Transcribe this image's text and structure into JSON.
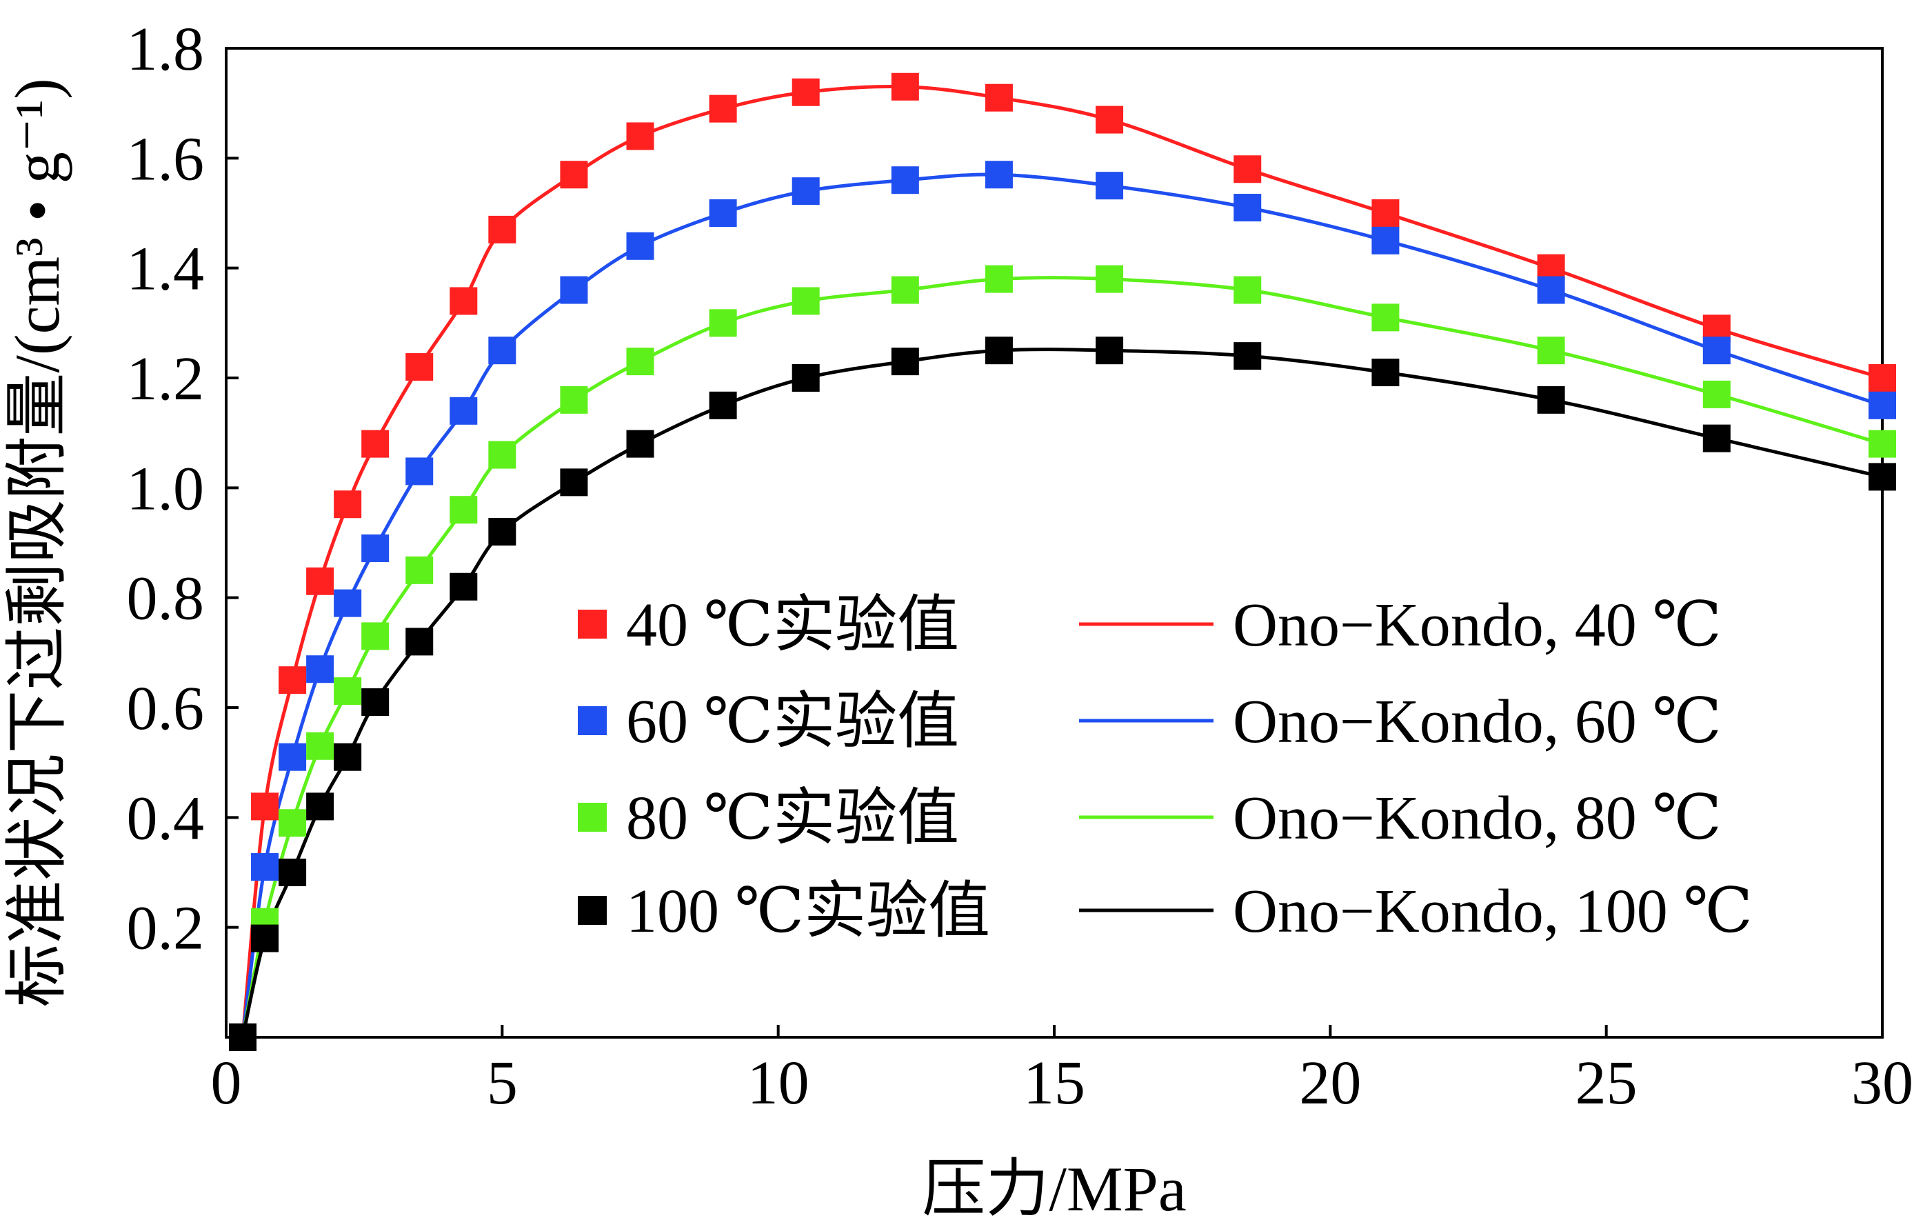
{
  "chart_data": {
    "type": "line",
    "xlabel": "压力/MPa",
    "ylabel": "标准状况下过剩吸附量/(cm³ • g⁻¹)",
    "xlim": [
      0,
      30
    ],
    "ylim": [
      0,
      1.8
    ],
    "xticks": [
      0,
      5,
      10,
      15,
      20,
      25,
      30
    ],
    "yticks": [
      0.2,
      0.4,
      0.6,
      0.8,
      1.0,
      1.2,
      1.4,
      1.6,
      1.8
    ],
    "xtick_labels": [
      "0",
      "5",
      "10",
      "15",
      "20",
      "25",
      "30"
    ],
    "ytick_labels": [
      "0.2",
      "0.4",
      "0.6",
      "0.8",
      "1.0",
      "1.2",
      "1.4",
      "1.6",
      "1.8"
    ],
    "grid": false,
    "legend_position": "center-right",
    "x": [
      0.3,
      0.7,
      1.2,
      1.7,
      2.2,
      2.7,
      3.5,
      4.3,
      5.0,
      6.3,
      7.5,
      9.0,
      10.5,
      12.3,
      14.0,
      16.0,
      18.5,
      21.0,
      24.0,
      27.0,
      30.0
    ],
    "series": [
      {
        "name": "40 ℃实验值",
        "style": "markers",
        "color": "#ff2020",
        "values": [
          0.0,
          0.42,
          0.65,
          0.83,
          0.97,
          1.08,
          1.22,
          1.34,
          1.47,
          1.57,
          1.64,
          1.69,
          1.72,
          1.73,
          1.71,
          1.67,
          1.58,
          1.5,
          1.4,
          1.29,
          1.2
        ]
      },
      {
        "name": "60 ℃实验值",
        "style": "markers",
        "color": "#1f4ff0",
        "values": [
          0.0,
          0.31,
          0.51,
          0.67,
          0.79,
          0.89,
          1.03,
          1.14,
          1.25,
          1.36,
          1.44,
          1.5,
          1.54,
          1.56,
          1.57,
          1.55,
          1.51,
          1.45,
          1.36,
          1.25,
          1.15
        ]
      },
      {
        "name": "80 ℃实验值",
        "style": "markers",
        "color": "#5ef01a",
        "values": [
          0.0,
          0.21,
          0.39,
          0.53,
          0.63,
          0.73,
          0.85,
          0.96,
          1.06,
          1.16,
          1.23,
          1.3,
          1.34,
          1.36,
          1.38,
          1.38,
          1.36,
          1.31,
          1.25,
          1.17,
          1.08
        ]
      },
      {
        "name": "100 ℃实验值",
        "style": "markers",
        "color": "#000000",
        "values": [
          0.0,
          0.18,
          0.3,
          0.42,
          0.51,
          0.61,
          0.72,
          0.82,
          0.92,
          1.01,
          1.08,
          1.15,
          1.2,
          1.23,
          1.25,
          1.25,
          1.24,
          1.21,
          1.16,
          1.09,
          1.02
        ]
      },
      {
        "name": "Ono−Kondo, 40 ℃",
        "style": "line",
        "color": "#ff2020",
        "values": [
          0.0,
          0.42,
          0.65,
          0.83,
          0.97,
          1.08,
          1.22,
          1.34,
          1.47,
          1.57,
          1.64,
          1.69,
          1.72,
          1.73,
          1.71,
          1.67,
          1.58,
          1.5,
          1.4,
          1.29,
          1.2
        ]
      },
      {
        "name": "Ono−Kondo, 60 ℃",
        "style": "line",
        "color": "#1f4ff0",
        "values": [
          0.0,
          0.31,
          0.51,
          0.67,
          0.79,
          0.89,
          1.03,
          1.14,
          1.25,
          1.36,
          1.44,
          1.5,
          1.54,
          1.56,
          1.57,
          1.55,
          1.51,
          1.45,
          1.36,
          1.25,
          1.15
        ]
      },
      {
        "name": "Ono−Kondo, 80 ℃",
        "style": "line",
        "color": "#5ef01a",
        "values": [
          0.0,
          0.21,
          0.39,
          0.53,
          0.63,
          0.73,
          0.85,
          0.96,
          1.06,
          1.16,
          1.23,
          1.3,
          1.34,
          1.36,
          1.38,
          1.38,
          1.36,
          1.31,
          1.25,
          1.17,
          1.08
        ]
      },
      {
        "name": "Ono−Kondo, 100 ℃",
        "style": "line",
        "color": "#000000",
        "values": [
          0.0,
          0.18,
          0.3,
          0.42,
          0.51,
          0.61,
          0.72,
          0.82,
          0.92,
          1.01,
          1.08,
          1.15,
          1.2,
          1.23,
          1.25,
          1.25,
          1.24,
          1.21,
          1.16,
          1.09,
          1.02
        ]
      }
    ]
  }
}
